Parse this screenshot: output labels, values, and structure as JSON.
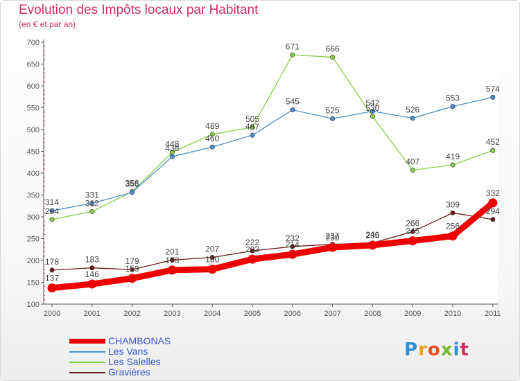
{
  "header": {
    "title": "Evolution des Impôts locaux par Habitant",
    "subtitle": "(en € et par an)"
  },
  "logo_text": "Proxiti",
  "chart_data": {
    "type": "line",
    "title": "Evolution des Impôts locaux par Habitant",
    "subtitle": "(en € et par an)",
    "xlabel": "",
    "ylabel": "",
    "categories": [
      "2000",
      "2001",
      "2002",
      "2003",
      "2004",
      "2005",
      "2006",
      "2007",
      "2008",
      "2009",
      "2010",
      "2011"
    ],
    "ylim": [
      100,
      700
    ],
    "yticks": [
      100,
      150,
      200,
      250,
      300,
      350,
      400,
      450,
      500,
      550,
      600,
      650,
      700
    ],
    "grid": false,
    "legend_position": "bottom-left",
    "series": [
      {
        "name": "CHAMBONAS",
        "color": "#ee0000",
        "emphasis": true,
        "values": [
          137,
          146,
          159,
          178,
          180,
          203,
          214,
          230,
          235,
          245,
          256,
          332
        ]
      },
      {
        "name": "Les Vans",
        "color": "#4a90cc",
        "values": [
          314,
          331,
          356,
          438,
          460,
          487,
          545,
          525,
          542,
          526,
          553,
          574
        ]
      },
      {
        "name": "Les Salelles",
        "color": "#88cc44",
        "values": [
          294,
          312,
          358,
          448,
          489,
          505,
          671,
          666,
          530,
          407,
          419,
          452
        ]
      },
      {
        "name": "Gravières",
        "color": "#6b1a1a",
        "values": [
          178,
          183,
          179,
          201,
          207,
          222,
          232,
          237,
          240,
          266,
          309,
          294
        ]
      }
    ]
  }
}
